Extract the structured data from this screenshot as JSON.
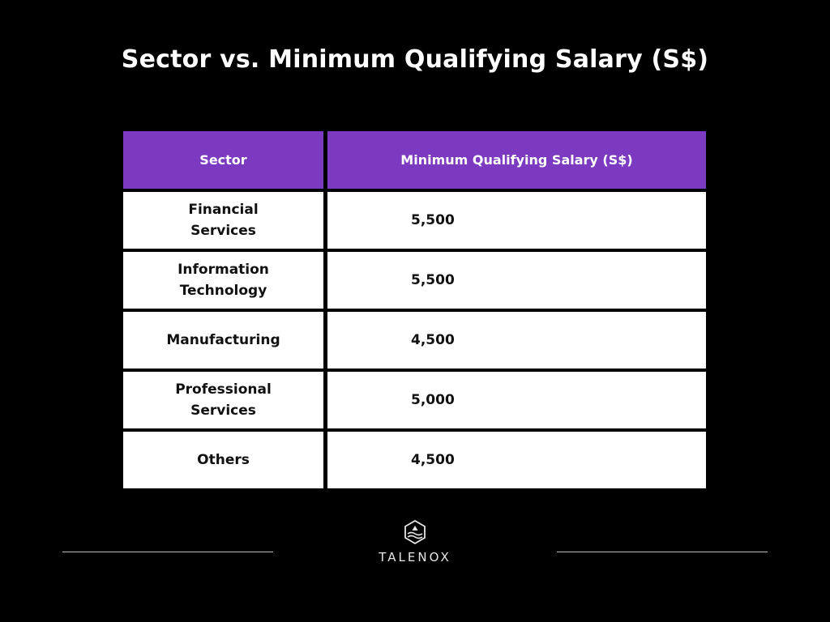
{
  "title": "Sector vs. Minimum Qualifying Salary (S$)",
  "table": {
    "headers": [
      "Sector",
      "Minimum Qualifying Salary (S$)"
    ],
    "rows": [
      {
        "sector": "Financial Services",
        "salary": "5,500"
      },
      {
        "sector": "Information Technology",
        "salary": "5,500"
      },
      {
        "sector": "Manufacturing",
        "salary": "4,500"
      },
      {
        "sector": "Professional Services",
        "salary": "5,000"
      },
      {
        "sector": "Others",
        "salary": "4,500"
      }
    ]
  },
  "colors": {
    "background": "#000000",
    "header": "#7b3ac0",
    "cell": "#ffffff"
  },
  "footer": {
    "logo_icon": "talenox-hexagon-icon",
    "brand": "TALENOX"
  }
}
